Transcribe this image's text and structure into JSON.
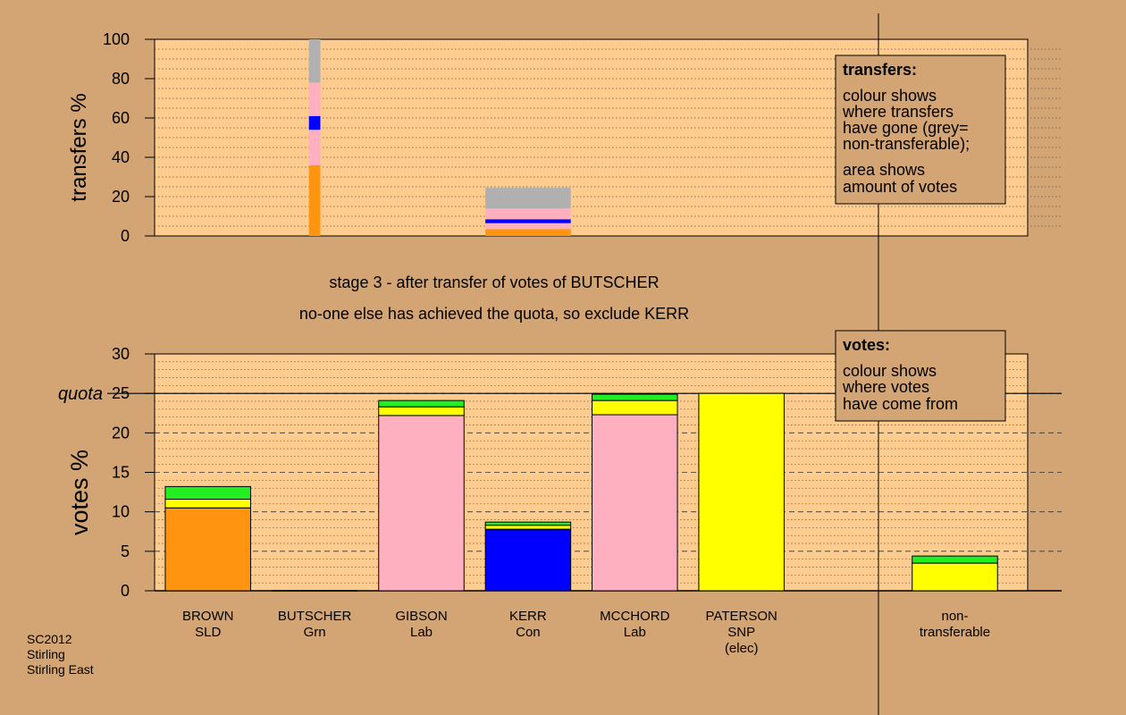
{
  "stage_text": {
    "line1": "stage 3 - after transfer of votes of BUTSCHER",
    "line2": "no-one else has achieved the quota, so exclude KERR"
  },
  "footer": [
    "SC2012",
    "Stirling",
    "Stirling East"
  ],
  "legend_transfers": {
    "title": "transfers:",
    "lines1": [
      "colour shows",
      "where transfers",
      "have gone (grey=",
      "non-transferable);"
    ],
    "lines2": [
      "area shows",
      "amount of votes"
    ]
  },
  "legend_votes": {
    "title": "votes:",
    "lines1": [
      "colour shows",
      "where votes",
      "have come from"
    ]
  },
  "colors": {
    "background": "#d4a574",
    "plot": "#ffcc8f",
    "SLD": "#ff9410",
    "Grn": "#22ee22",
    "Lab": "#ffb0c0",
    "Con": "#0000ff",
    "SNP": "#ffff00",
    "nontransferable": "#b0b0b0"
  },
  "chart_data": [
    {
      "type": "bar",
      "name": "transfers",
      "ylabel": "transfers %",
      "ylim": [
        0,
        100
      ],
      "yticks": [
        0,
        20,
        40,
        60,
        80,
        100
      ],
      "grid": true,
      "bars": [
        {
          "candidate": "BUTSCHER",
          "width_fraction": 0.1333,
          "segments": [
            {
              "party": "SLD",
              "from": 0,
              "to": 36
            },
            {
              "party": "Lab",
              "from": 36,
              "to": 54
            },
            {
              "party": "Con",
              "from": 54,
              "to": 61
            },
            {
              "party": "Lab",
              "from": 61,
              "to": 78
            },
            {
              "party": "nontransferable",
              "from": 78,
              "to": 100
            }
          ]
        },
        {
          "candidate": "KERR",
          "width_fraction": 1,
          "segments": [
            {
              "party": "SLD",
              "from": 0,
              "to": 3.5
            },
            {
              "party": "Lab",
              "from": 3.5,
              "to": 6.5
            },
            {
              "party": "Con",
              "from": 6.5,
              "to": 8.5
            },
            {
              "party": "Lab",
              "from": 8.5,
              "to": 14
            },
            {
              "party": "nontransferable",
              "from": 14,
              "to": 24.5
            }
          ]
        }
      ]
    },
    {
      "type": "bar",
      "name": "votes",
      "ylabel": "votes %",
      "ylim": [
        0,
        30
      ],
      "yticks": [
        0,
        5,
        10,
        15,
        20,
        25,
        30
      ],
      "quota": 25,
      "quota_label": "quota",
      "grid": true,
      "categories": [
        {
          "name": "BROWN",
          "party": "SLD",
          "note": ""
        },
        {
          "name": "BUTSCHER",
          "party": "Grn",
          "note": ""
        },
        {
          "name": "GIBSON",
          "party": "Lab",
          "note": ""
        },
        {
          "name": "KERR",
          "party": "Con",
          "note": ""
        },
        {
          "name": "MCCHORD",
          "party": "Lab",
          "note": ""
        },
        {
          "name": "PATERSON",
          "party": "SNP",
          "note": "(elec)"
        },
        {
          "name": "",
          "party": "",
          "note": ""
        },
        {
          "name": "non-",
          "party": "transferable",
          "note": ""
        }
      ],
      "stacks": [
        [
          {
            "party": "SLD",
            "value": 10.5
          },
          {
            "party": "SNP",
            "value": 1.1
          },
          {
            "party": "Grn",
            "value": 1.6
          }
        ],
        [],
        [
          {
            "party": "Lab",
            "value": 22.2
          },
          {
            "party": "SNP",
            "value": 1.1
          },
          {
            "party": "Grn",
            "value": 0.8
          }
        ],
        [
          {
            "party": "Con",
            "value": 7.8
          },
          {
            "party": "SNP",
            "value": 0.5
          },
          {
            "party": "Grn",
            "value": 0.4
          }
        ],
        [
          {
            "party": "Lab",
            "value": 22.3
          },
          {
            "party": "SNP",
            "value": 1.8
          },
          {
            "party": "Grn",
            "value": 0.8
          }
        ],
        [
          {
            "party": "SNP",
            "value": 25
          }
        ],
        [],
        [
          {
            "party": "SNP",
            "value": 3.5
          },
          {
            "party": "Grn",
            "value": 0.9
          }
        ]
      ]
    }
  ]
}
